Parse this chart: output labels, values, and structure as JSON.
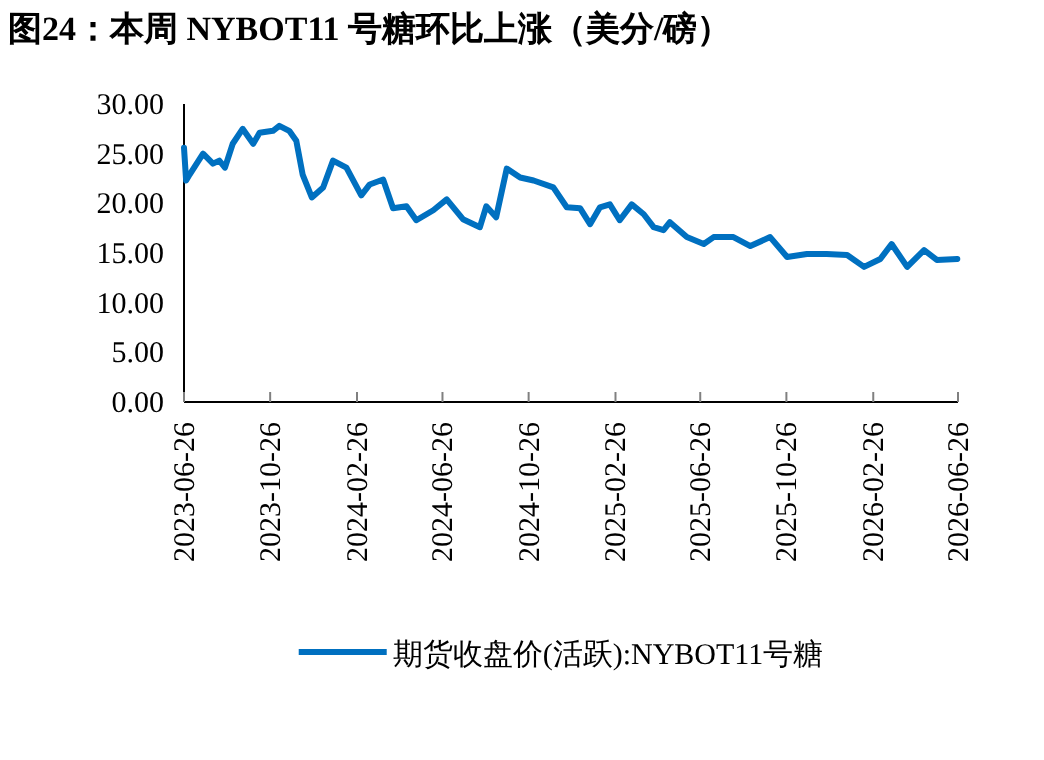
{
  "chart_data": {
    "type": "line",
    "title": "图24：本周 NYBOT11 号糖环比上涨（美分/磅）",
    "xlim": [
      "2023-06-26",
      "2026-06-26"
    ],
    "xticks": [
      "2023-06-26",
      "2023-10-26",
      "2024-02-26",
      "2024-06-26",
      "2024-10-26",
      "2025-02-26",
      "2025-06-26",
      "2025-10-26",
      "2026-02-26",
      "2026-06-26"
    ],
    "ylim": [
      0,
      30
    ],
    "yticks": [
      {
        "value": 0,
        "label": "0.00"
      },
      {
        "value": 5,
        "label": "5.00"
      },
      {
        "value": 10,
        "label": "10.00"
      },
      {
        "value": 15,
        "label": "15.00"
      },
      {
        "value": 20,
        "label": "20.00"
      },
      {
        "value": 25,
        "label": "25.00"
      },
      {
        "value": 30,
        "label": "30.00"
      }
    ],
    "grid": false,
    "legend": "bottom",
    "marker": "none",
    "line_style": "solid",
    "series": [
      {
        "name": "期货收盘价(活跃):NYBOT11号糖",
        "color": "#0070c0",
        "x": [
          "2023-06-26",
          "2023-06-29",
          "2023-07-04",
          "2023-07-23",
          "2023-08-06",
          "2023-08-15",
          "2023-08-23",
          "2023-09-03",
          "2023-09-17",
          "2023-10-02",
          "2023-10-11",
          "2023-10-30",
          "2023-11-08",
          "2023-11-22",
          "2023-12-02",
          "2023-12-11",
          "2023-12-24",
          "2024-01-09",
          "2024-01-23",
          "2024-02-11",
          "2024-03-03",
          "2024-03-15",
          "2024-04-03",
          "2024-04-17",
          "2024-05-06",
          "2024-05-20",
          "2024-06-13",
          "2024-07-02",
          "2024-07-25",
          "2024-08-18",
          "2024-08-27",
          "2024-09-10",
          "2024-09-25",
          "2024-10-14",
          "2024-11-02",
          "2024-11-30",
          "2024-12-19",
          "2025-01-07",
          "2025-01-21",
          "2025-02-04",
          "2025-02-18",
          "2025-03-04",
          "2025-03-21",
          "2025-04-07",
          "2025-04-21",
          "2025-05-05",
          "2025-05-14",
          "2025-06-07",
          "2025-07-01",
          "2025-07-15",
          "2025-08-12",
          "2025-09-05",
          "2025-10-03",
          "2025-10-27",
          "2025-11-24",
          "2025-12-22",
          "2026-01-20",
          "2026-02-13",
          "2026-03-08",
          "2026-03-24",
          "2026-04-15",
          "2026-05-09",
          "2026-05-27",
          "2026-06-25"
        ],
        "values": [
          25.6,
          22.3,
          22.9,
          25.0,
          24.0,
          24.3,
          23.6,
          26.0,
          27.5,
          26.0,
          27.1,
          27.3,
          27.8,
          27.3,
          26.3,
          22.9,
          20.6,
          21.6,
          24.3,
          23.6,
          20.8,
          21.9,
          22.4,
          19.5,
          19.7,
          18.3,
          19.3,
          20.4,
          18.4,
          17.6,
          19.7,
          18.6,
          23.5,
          22.6,
          22.3,
          21.6,
          19.6,
          19.5,
          17.9,
          19.6,
          19.9,
          18.3,
          19.9,
          18.9,
          17.6,
          17.3,
          18.1,
          16.6,
          15.9,
          16.6,
          16.6,
          15.7,
          16.6,
          14.6,
          14.9,
          14.9,
          14.8,
          13.6,
          14.4,
          15.9,
          13.6,
          15.3,
          14.3,
          14.4
        ]
      }
    ]
  }
}
